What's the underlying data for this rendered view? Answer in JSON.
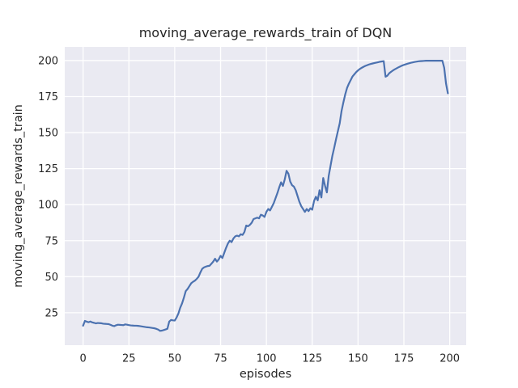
{
  "colors": {
    "figure_background": "#ffffff",
    "plot_background": "#eaeaf2",
    "gridline": "#ffffff",
    "line": "#4c72b0",
    "text": "#262626"
  },
  "chart_data": {
    "type": "line",
    "title": "moving_average_rewards_train of DQN",
    "xlabel": "episodes",
    "ylabel": "moving_average_rewards_train",
    "legend": null,
    "grid": true,
    "x_ticks": [
      0,
      25,
      50,
      75,
      100,
      125,
      150,
      175,
      200
    ],
    "y_ticks": [
      25,
      50,
      75,
      100,
      125,
      150,
      175,
      200
    ],
    "xlim": [
      -10,
      209
    ],
    "ylim": [
      2.5,
      209.5
    ],
    "series": [
      {
        "name": "moving_average_rewards_train",
        "x_start": 0,
        "x_step": 1,
        "values": [
          16.0,
          19.3,
          18.8,
          18.4,
          18.9,
          18.3,
          18.0,
          17.6,
          17.9,
          17.8,
          17.7,
          17.4,
          17.3,
          17.2,
          17.1,
          16.6,
          16.0,
          15.7,
          16.3,
          16.7,
          16.6,
          16.5,
          16.4,
          16.9,
          16.7,
          16.4,
          16.2,
          16.1,
          16.0,
          16.0,
          15.9,
          15.7,
          15.5,
          15.3,
          15.1,
          14.9,
          14.8,
          14.6,
          14.4,
          14.2,
          13.8,
          13.3,
          12.4,
          12.6,
          13.0,
          13.4,
          13.9,
          18.9,
          20.0,
          19.7,
          19.6,
          21.7,
          24.5,
          28.5,
          31.5,
          35.5,
          40.0,
          41.5,
          43.5,
          45.5,
          46.5,
          47.3,
          48.5,
          50.0,
          53.0,
          55.5,
          56.5,
          57.0,
          57.4,
          57.6,
          59.0,
          60.5,
          62.5,
          60.5,
          62.0,
          64.5,
          63.0,
          66.5,
          70.0,
          73.0,
          75.0,
          74.0,
          76.5,
          78.0,
          78.5,
          78.0,
          79.5,
          79.0,
          81.0,
          85.5,
          85.0,
          86.0,
          87.5,
          90.0,
          90.5,
          91.0,
          90.5,
          93.0,
          92.5,
          91.5,
          95.0,
          97.0,
          96.0,
          98.5,
          101.0,
          104.5,
          108.0,
          112.0,
          115.5,
          113.0,
          117.5,
          123.5,
          121.5,
          116.0,
          113.5,
          112.5,
          110.0,
          106.0,
          102.0,
          99.0,
          97.0,
          95.0,
          97.0,
          95.5,
          97.5,
          96.5,
          102.5,
          105.5,
          103.0,
          110.0,
          105.0,
          118.5,
          113.0,
          108.5,
          120.0,
          127.0,
          134.0,
          139.5,
          145.5,
          151.0,
          156.5,
          165.0,
          171.0,
          176.5,
          181.0,
          184.0,
          186.5,
          189.0,
          190.5,
          192.0,
          193.2,
          194.2,
          195.0,
          195.7,
          196.3,
          196.8,
          197.3,
          197.7,
          198.0,
          198.3,
          198.6,
          198.9,
          199.2,
          199.4,
          199.6,
          188.8,
          189.5,
          191.2,
          192.2,
          193.1,
          193.9,
          194.6,
          195.3,
          195.9,
          196.5,
          197.0,
          197.4,
          197.8,
          198.2,
          198.5,
          198.8,
          199.1,
          199.3,
          199.5,
          199.6,
          199.7,
          199.8,
          199.9,
          199.9,
          199.9,
          199.9,
          199.9,
          199.9,
          199.9,
          199.9,
          199.9,
          199.9,
          195.0,
          184.0,
          177.3
        ]
      }
    ]
  }
}
